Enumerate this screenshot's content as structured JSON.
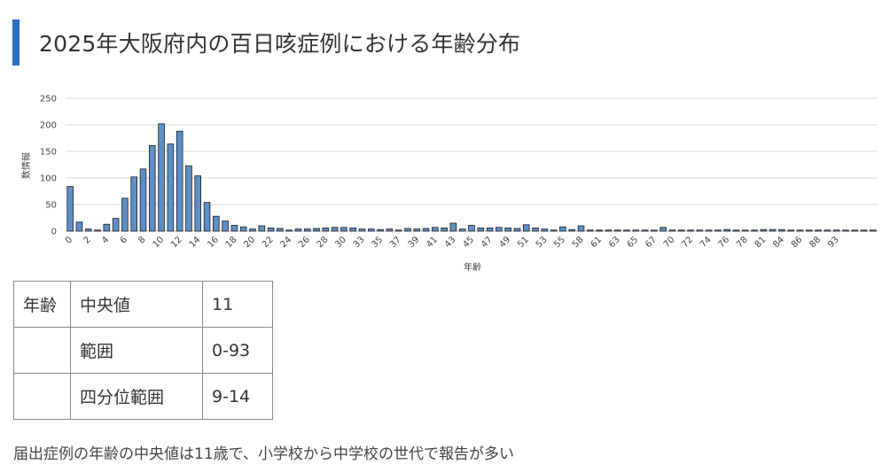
{
  "title": "2025年大阪府内の百日咳症例における年齢分布",
  "chart_data": {
    "type": "bar",
    "title": "",
    "xlabel": "年齢",
    "ylabel": "数情報",
    "ylim": [
      0,
      250
    ],
    "yticks": [
      0,
      50,
      100,
      150,
      200,
      250
    ],
    "grid": true,
    "bar_color": "#5b8fc7",
    "bar_edge_color": "#1f1f1f",
    "categories": [
      0,
      1,
      2,
      3,
      4,
      5,
      6,
      7,
      8,
      9,
      10,
      11,
      12,
      13,
      14,
      15,
      16,
      17,
      18,
      19,
      20,
      21,
      22,
      23,
      24,
      25,
      26,
      27,
      28,
      29,
      30,
      31,
      32,
      33,
      34,
      35,
      36,
      37,
      38,
      39,
      40,
      41,
      42,
      43,
      44,
      45,
      46,
      47,
      48,
      49,
      50,
      51,
      52,
      53,
      54,
      55,
      56,
      57,
      58,
      59,
      60,
      61,
      62,
      63,
      64,
      65,
      66,
      67,
      68,
      69,
      70,
      71,
      72,
      73,
      74,
      75,
      76,
      77,
      78,
      79,
      80,
      81,
      82,
      83,
      84,
      85,
      86,
      87,
      88
    ],
    "values": [
      84,
      17,
      4,
      2,
      13,
      24,
      62,
      102,
      117,
      161,
      202,
      164,
      188,
      123,
      104,
      54,
      28,
      19,
      11,
      8,
      4,
      10,
      6,
      5,
      2,
      4,
      4,
      5,
      6,
      7,
      7,
      6,
      4,
      4,
      3,
      4,
      2,
      5,
      4,
      5,
      7,
      6,
      15,
      4,
      11,
      6,
      6,
      7,
      6,
      5,
      12,
      6,
      4,
      2,
      8,
      3,
      10,
      2,
      2,
      2,
      2,
      2,
      2,
      2,
      2,
      7,
      2,
      2,
      2,
      2,
      2,
      2,
      3,
      2,
      2,
      2,
      3,
      3,
      3,
      2,
      2,
      2,
      2,
      2,
      2,
      2,
      2,
      2,
      2
    ],
    "xtick_labels": [
      "0",
      "2",
      "4",
      "6",
      "8",
      "10",
      "12",
      "14",
      "16",
      "18",
      "20",
      "22",
      "24",
      "26",
      "28",
      "30",
      "33",
      "35",
      "37",
      "39",
      "41",
      "43",
      "45",
      "47",
      "49",
      "51",
      "53",
      "55",
      "58",
      "61",
      "63",
      "65",
      "67",
      "70",
      "72",
      "74",
      "76",
      "78",
      "81",
      "84",
      "86",
      "88",
      "93"
    ]
  },
  "table": {
    "rows": [
      {
        "c1": "年齢",
        "c2": "中央値",
        "c3": "11"
      },
      {
        "c1": "",
        "c2": "範囲",
        "c3": "0-93"
      },
      {
        "c1": "",
        "c2": "四分位範囲",
        "c3": "9-14"
      }
    ]
  },
  "caption": "届出症例の年齢の中央値は11歳で、小学校から中学校の世代で報告が多い"
}
